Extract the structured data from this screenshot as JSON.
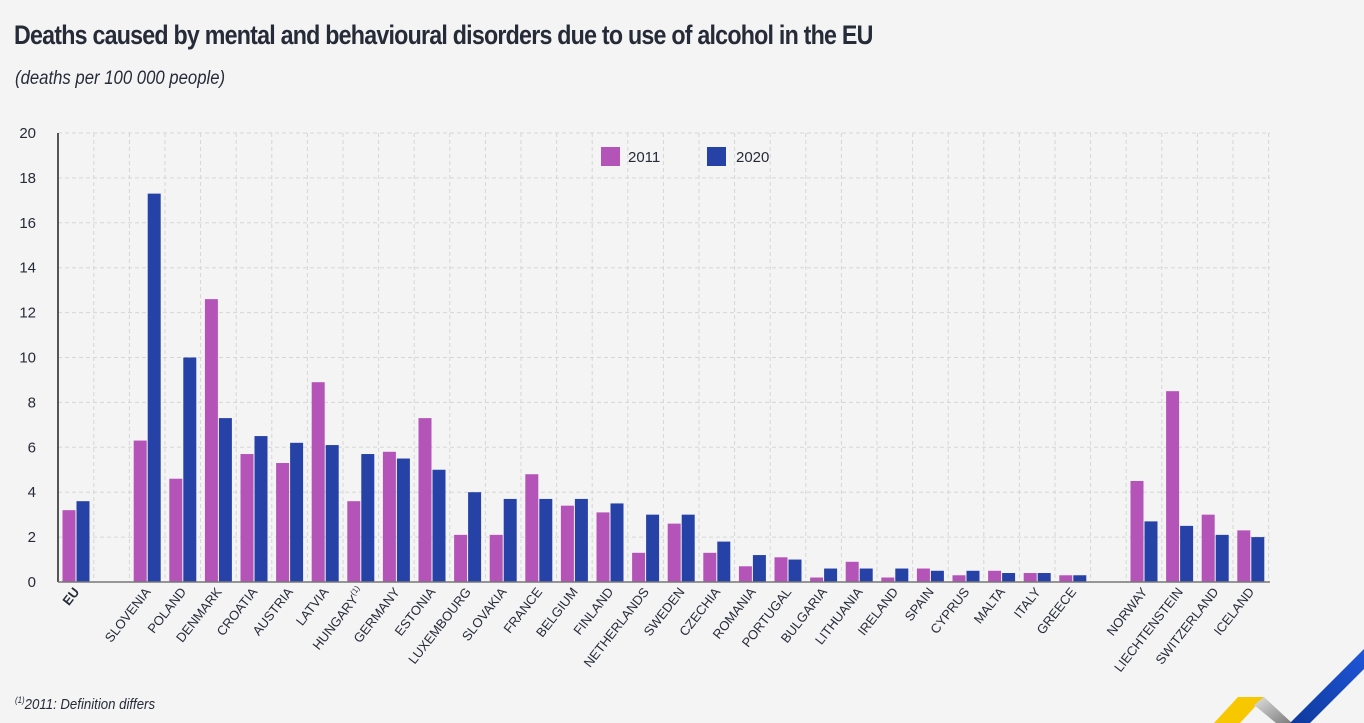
{
  "header": {
    "title": "Deaths caused by mental and behavioural disorders due to use of alcohol in the EU",
    "subtitle": "(deaths per 100 000 people)"
  },
  "footnote": {
    "marker": "(1)",
    "text": "2011: Definition differs"
  },
  "colors": {
    "series_2011": "#b554b8",
    "series_2020": "#2742a6",
    "grid": "#d6d6d6",
    "axis": "#777777",
    "text": "#262b38",
    "logo_yellow": "#f7c800",
    "logo_blue": "#1a49c9"
  },
  "chart_data": {
    "type": "bar",
    "title": "Deaths caused by mental and behavioural disorders due to use of alcohol in the EU",
    "subtitle": "(deaths per 100 000 people)",
    "xlabel": "",
    "ylabel": "",
    "ylim": [
      0,
      20
    ],
    "yticks": [
      0,
      2,
      4,
      6,
      8,
      10,
      12,
      14,
      16,
      18,
      20
    ],
    "grid": true,
    "legend_position": "top-center",
    "categories": [
      "EU",
      "",
      "SLOVENIA",
      "POLAND",
      "DENMARK",
      "CROATIA",
      "AUSTRIA",
      "LATVIA",
      "HUNGARY(1)",
      "GERMANY",
      "ESTONIA",
      "LUXEMBOURG",
      "SLOVAKIA",
      "FRANCE",
      "BELGIUM",
      "FINLAND",
      "NETHERLANDS",
      "SWEDEN",
      "CZECHIA",
      "ROMANIA",
      "PORTUGAL",
      "BULGARIA",
      "LITHUANIA",
      "IRELAND",
      "SPAIN",
      "CYPRUS",
      "MALTA",
      "ITALY",
      "GREECE",
      "",
      "NORWAY",
      "LIECHTENSTEIN",
      "SWITZERLAND",
      "ICELAND"
    ],
    "series": [
      {
        "name": "2011",
        "values": [
          3.2,
          null,
          6.3,
          4.6,
          12.6,
          5.7,
          5.3,
          8.9,
          3.6,
          5.8,
          7.3,
          2.1,
          2.1,
          4.8,
          3.4,
          3.1,
          1.3,
          2.6,
          1.3,
          0.7,
          1.1,
          0.2,
          0.9,
          0.2,
          0.6,
          0.3,
          0.5,
          0.4,
          0.3,
          null,
          4.5,
          8.5,
          3.0,
          2.3
        ]
      },
      {
        "name": "2020",
        "values": [
          3.6,
          null,
          17.3,
          10.0,
          7.3,
          6.5,
          6.2,
          6.1,
          5.7,
          5.5,
          5.0,
          4.0,
          3.7,
          3.7,
          3.7,
          3.5,
          3.0,
          3.0,
          1.8,
          1.2,
          1.0,
          0.6,
          0.6,
          0.6,
          0.5,
          0.5,
          0.4,
          0.4,
          0.3,
          null,
          2.7,
          2.5,
          2.1,
          2.0
        ]
      }
    ]
  }
}
